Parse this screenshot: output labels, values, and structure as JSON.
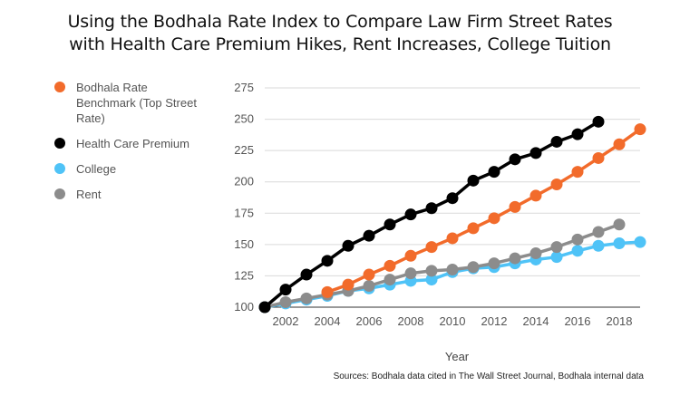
{
  "title_line1": "Using the Bodhala Rate Index to Compare Law Firm Street Rates",
  "title_line2": "with Health Care Premium Hikes, Rent Increases, College Tuition",
  "sources": "Sources: Bodhala data cited in The Wall Street Journal, Bodhala internal data",
  "chart_data": {
    "type": "line",
    "title": "Using the Bodhala Rate Index to Compare Law Firm Street Rates with Health Care Premium Hikes, Rent Increases, College Tuition",
    "xlabel": "Year",
    "ylabel": "",
    "xlim": [
      2001,
      2019
    ],
    "ylim": [
      100,
      275
    ],
    "x_ticks": [
      2002,
      2004,
      2006,
      2008,
      2010,
      2012,
      2014,
      2016,
      2018
    ],
    "y_ticks": [
      100,
      125,
      150,
      175,
      200,
      225,
      250,
      275
    ],
    "grid": "horizontal",
    "legend_position": "left",
    "series": [
      {
        "name": "Bodhala Rate Benchmark (Top Street Rate)",
        "color": "#f26b2b",
        "x": [
          2004,
          2005,
          2006,
          2007,
          2008,
          2009,
          2010,
          2011,
          2012,
          2013,
          2014,
          2015,
          2016,
          2017,
          2018,
          2019
        ],
        "values": [
          112,
          118,
          126,
          133,
          141,
          148,
          155,
          163,
          171,
          180,
          189,
          198,
          208,
          219,
          230,
          242
        ]
      },
      {
        "name": "Health Care Premium",
        "color": "#000000",
        "x": [
          2001,
          2002,
          2003,
          2004,
          2005,
          2006,
          2007,
          2008,
          2009,
          2010,
          2011,
          2012,
          2013,
          2014,
          2015,
          2016,
          2017
        ],
        "values": [
          100,
          114,
          126,
          137,
          149,
          157,
          166,
          174,
          179,
          187,
          201,
          208,
          218,
          223,
          232,
          238,
          248
        ]
      },
      {
        "name": "College",
        "color": "#4fc3f7",
        "x": [
          2001,
          2002,
          2003,
          2004,
          2005,
          2006,
          2007,
          2008,
          2009,
          2010,
          2011,
          2012,
          2013,
          2014,
          2015,
          2016,
          2017,
          2018,
          2019
        ],
        "values": [
          100,
          103,
          106,
          109,
          113,
          115,
          118,
          121,
          122,
          128,
          131,
          132,
          135,
          138,
          140,
          145,
          149,
          151,
          152
        ]
      },
      {
        "name": "Rent",
        "color": "#8c8c8c",
        "x": [
          2001,
          2002,
          2003,
          2004,
          2005,
          2006,
          2007,
          2008,
          2009,
          2010,
          2011,
          2012,
          2013,
          2014,
          2015,
          2016,
          2017,
          2018
        ],
        "values": [
          100,
          104,
          107,
          110,
          113,
          117,
          122,
          127,
          129,
          130,
          132,
          135,
          139,
          143,
          148,
          154,
          160,
          166
        ]
      }
    ]
  }
}
